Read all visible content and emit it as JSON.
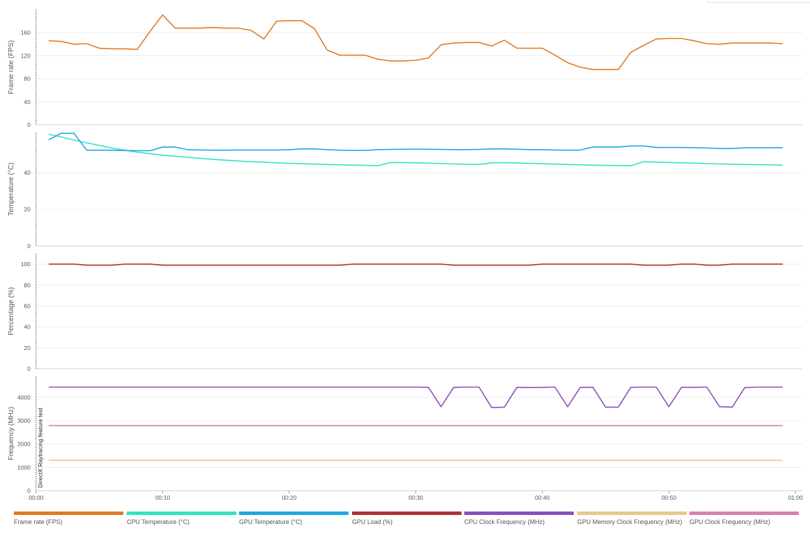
{
  "chart_data": [
    {
      "type": "line",
      "ylabel": "Frame rate (FPS)",
      "yticks": [
        0,
        40,
        80,
        120,
        160
      ],
      "ylim": [
        0,
        200
      ],
      "grid": true,
      "x": [
        1,
        2,
        3,
        4,
        5,
        6,
        7,
        8,
        9,
        10,
        11,
        12,
        13,
        14,
        15,
        16,
        17,
        18,
        19,
        20,
        21,
        22,
        23,
        24,
        25,
        26,
        27,
        28,
        29,
        30,
        31,
        32,
        33,
        34,
        35,
        36,
        37,
        38,
        39,
        40,
        41,
        42,
        43,
        44,
        45,
        46,
        47,
        48,
        49,
        50,
        51,
        52,
        53,
        54,
        55,
        56,
        57,
        58,
        59
      ],
      "series": [
        {
          "name": "Frame rate (FPS)",
          "color": "#e07b24",
          "values": [
            146,
            145,
            140,
            141,
            133,
            132,
            132,
            131,
            162,
            191,
            168,
            168,
            168,
            169,
            168,
            168,
            164,
            149,
            180,
            181,
            181,
            167,
            130,
            121,
            121,
            121,
            114,
            111,
            111,
            112,
            116,
            139,
            142,
            143,
            143,
            137,
            147,
            133,
            133,
            133,
            121,
            108,
            100,
            96,
            96,
            96,
            126,
            138,
            149,
            150,
            150,
            146,
            141,
            140,
            142,
            142,
            142,
            142,
            141
          ]
        }
      ]
    },
    {
      "type": "line",
      "ylabel": "Temperature (°C)",
      "yticks": [
        0,
        20,
        40
      ],
      "ylim": [
        0,
        62
      ],
      "grid": true,
      "x": [
        1,
        2,
        3,
        4,
        5,
        6,
        7,
        8,
        9,
        10,
        11,
        12,
        13,
        14,
        15,
        16,
        17,
        18,
        19,
        20,
        21,
        22,
        23,
        24,
        25,
        26,
        27,
        28,
        29,
        30,
        31,
        32,
        33,
        34,
        35,
        36,
        37,
        38,
        39,
        40,
        41,
        42,
        43,
        44,
        45,
        46,
        47,
        48,
        49,
        50,
        51,
        52,
        53,
        54,
        55,
        56,
        57,
        58,
        59
      ],
      "series": [
        {
          "name": "CPU Temperature (°C)",
          "color": "#33e2c4",
          "values": [
            61,
            59.5,
            57.8,
            56.3,
            54.9,
            53.5,
            52.3,
            51.2,
            50.4,
            49.6,
            49,
            48.4,
            47.8,
            47.3,
            46.8,
            46.4,
            46,
            45.7,
            45.4,
            45.1,
            44.9,
            44.7,
            44.5,
            44.3,
            44.2,
            44,
            43.8,
            45.5,
            45.5,
            45.4,
            45.2,
            45,
            44.8,
            44.6,
            44.5,
            45.4,
            45.5,
            45.3,
            45.1,
            44.9,
            44.7,
            44.5,
            44.3,
            44.1,
            44,
            43.9,
            43.8,
            46,
            45.8,
            45.6,
            45.4,
            45.2,
            45,
            44.8,
            44.6,
            44.5,
            44.4,
            44.3,
            44.2
          ]
        },
        {
          "name": "GPU Temperature (°C)",
          "color": "#1ea7e3",
          "values": [
            58,
            61.5,
            61.5,
            52.3,
            52.3,
            52.3,
            52.1,
            52,
            52,
            54,
            54,
            52.5,
            52.4,
            52.3,
            52.3,
            52.4,
            52.4,
            52.4,
            52.4,
            52.5,
            53,
            53,
            52.6,
            52.3,
            52.2,
            52.2,
            52.6,
            52.7,
            52.8,
            52.8,
            52.8,
            52.7,
            52.6,
            52.6,
            52.7,
            53,
            53,
            52.8,
            52.6,
            52.6,
            52.4,
            52.3,
            52.4,
            54,
            54,
            54,
            54.6,
            54.6,
            53.8,
            53.8,
            53.8,
            53.6,
            53.5,
            53.2,
            53.2,
            53.6,
            53.6,
            53.6,
            53.6
          ]
        }
      ]
    },
    {
      "type": "line",
      "ylabel": "Percentage (%)",
      "yticks": [
        0,
        20,
        40,
        60,
        80,
        100
      ],
      "ylim": [
        0,
        110
      ],
      "grid": true,
      "x": [
        1,
        2,
        3,
        4,
        5,
        6,
        7,
        8,
        9,
        10,
        11,
        12,
        13,
        14,
        15,
        16,
        17,
        18,
        19,
        20,
        21,
        22,
        23,
        24,
        25,
        26,
        27,
        28,
        29,
        30,
        31,
        32,
        33,
        34,
        35,
        36,
        37,
        38,
        39,
        40,
        41,
        42,
        43,
        44,
        45,
        46,
        47,
        48,
        49,
        50,
        51,
        52,
        53,
        54,
        55,
        56,
        57,
        58,
        59
      ],
      "series": [
        {
          "name": "GPU Load (%)",
          "color": "#b23232",
          "values": [
            100,
            100,
            100,
            99,
            99,
            99,
            100,
            100,
            100,
            99,
            99,
            99,
            99,
            99,
            99,
            99,
            99,
            99,
            99,
            99,
            99,
            99,
            99,
            99,
            100,
            100,
            100,
            100,
            100,
            100,
            100,
            100,
            99,
            99,
            99,
            99,
            99,
            99,
            99,
            100,
            100,
            100,
            100,
            100,
            100,
            100,
            100,
            99,
            99,
            99,
            100,
            100,
            99,
            99,
            100,
            100,
            100,
            100,
            100
          ]
        }
      ]
    },
    {
      "type": "line",
      "ylabel": "Frequency (MHz)",
      "yticks": [
        0,
        1000,
        2000,
        3000,
        4000
      ],
      "ylim": [
        0,
        4900
      ],
      "grid": true,
      "annotation": "DirectX Raytracing feature test",
      "x": [
        1,
        2,
        3,
        4,
        5,
        6,
        7,
        8,
        9,
        10,
        11,
        12,
        13,
        14,
        15,
        16,
        17,
        18,
        19,
        20,
        21,
        22,
        23,
        24,
        25,
        26,
        27,
        28,
        29,
        30,
        31,
        32,
        33,
        34,
        35,
        36,
        37,
        38,
        39,
        40,
        41,
        42,
        43,
        44,
        45,
        46,
        47,
        48,
        49,
        50,
        51,
        52,
        53,
        54,
        55,
        56,
        57,
        58,
        59
      ],
      "series": [
        {
          "name": "CPU Clock Frequency (MHz)",
          "color": "#8a4fbb",
          "values": [
            4440,
            4440,
            4440,
            4440,
            4440,
            4440,
            4440,
            4440,
            4440,
            4440,
            4440,
            4440,
            4440,
            4440,
            4440,
            4440,
            4440,
            4440,
            4440,
            4440,
            4440,
            4440,
            4440,
            4440,
            4440,
            4440,
            4440,
            4440,
            4440,
            4440,
            4430,
            3600,
            4430,
            4440,
            4440,
            3560,
            3580,
            4430,
            4420,
            4430,
            4440,
            3600,
            4430,
            4430,
            3580,
            3580,
            4430,
            4440,
            4440,
            3600,
            4430,
            4430,
            4440,
            3600,
            3580,
            4420,
            4440,
            4440,
            4440
          ]
        },
        {
          "name": "GPU Memory Clock Frequency (MHz)",
          "color": "#e8c98a",
          "values": [
            1300,
            1300,
            1300,
            1300,
            1300,
            1300,
            1300,
            1300,
            1300,
            1300,
            1300,
            1300,
            1300,
            1300,
            1300,
            1300,
            1300,
            1300,
            1300,
            1300,
            1300,
            1300,
            1300,
            1300,
            1300,
            1300,
            1300,
            1300,
            1300,
            1300,
            1300,
            1300,
            1300,
            1300,
            1300,
            1300,
            1300,
            1300,
            1300,
            1300,
            1300,
            1300,
            1300,
            1300,
            1300,
            1300,
            1300,
            1300,
            1300,
            1300,
            1300,
            1300,
            1300,
            1300,
            1300,
            1300,
            1300,
            1300,
            1300
          ]
        },
        {
          "name": "GPU Clock Frequency (MHz)",
          "color": "#d87fae",
          "values": [
            2790,
            2790,
            2790,
            2790,
            2790,
            2790,
            2790,
            2790,
            2790,
            2790,
            2790,
            2790,
            2790,
            2790,
            2790,
            2790,
            2790,
            2790,
            2790,
            2790,
            2790,
            2790,
            2790,
            2790,
            2790,
            2790,
            2790,
            2790,
            2790,
            2790,
            2790,
            2790,
            2790,
            2790,
            2790,
            2790,
            2790,
            2790,
            2790,
            2790,
            2790,
            2790,
            2790,
            2790,
            2790,
            2790,
            2790,
            2790,
            2790,
            2790,
            2790,
            2790,
            2790,
            2790,
            2790,
            2790,
            2790,
            2790,
            2790
          ]
        }
      ]
    }
  ],
  "x_axis": {
    "ticks": [
      "00:00",
      "00:10",
      "00:20",
      "00:30",
      "00:40",
      "00:50",
      "01:00"
    ],
    "range_seconds": [
      0,
      60
    ]
  },
  "legend": [
    {
      "label": "Frame rate (FPS)",
      "color": "#e07b24"
    },
    {
      "label": "CPU Temperature (°C)",
      "color": "#33e2c4"
    },
    {
      "label": "GPU Temperature (°C)",
      "color": "#1ea7e3"
    },
    {
      "label": "GPU Load (%)",
      "color": "#b23232"
    },
    {
      "label": "CPU Clock Frequency (MHz)",
      "color": "#8a4fbb"
    },
    {
      "label": "GPU Memory Clock Frequency (MHz)",
      "color": "#e8c98a"
    },
    {
      "label": "GPU Clock Frequency (MHz)",
      "color": "#d87fae"
    }
  ]
}
